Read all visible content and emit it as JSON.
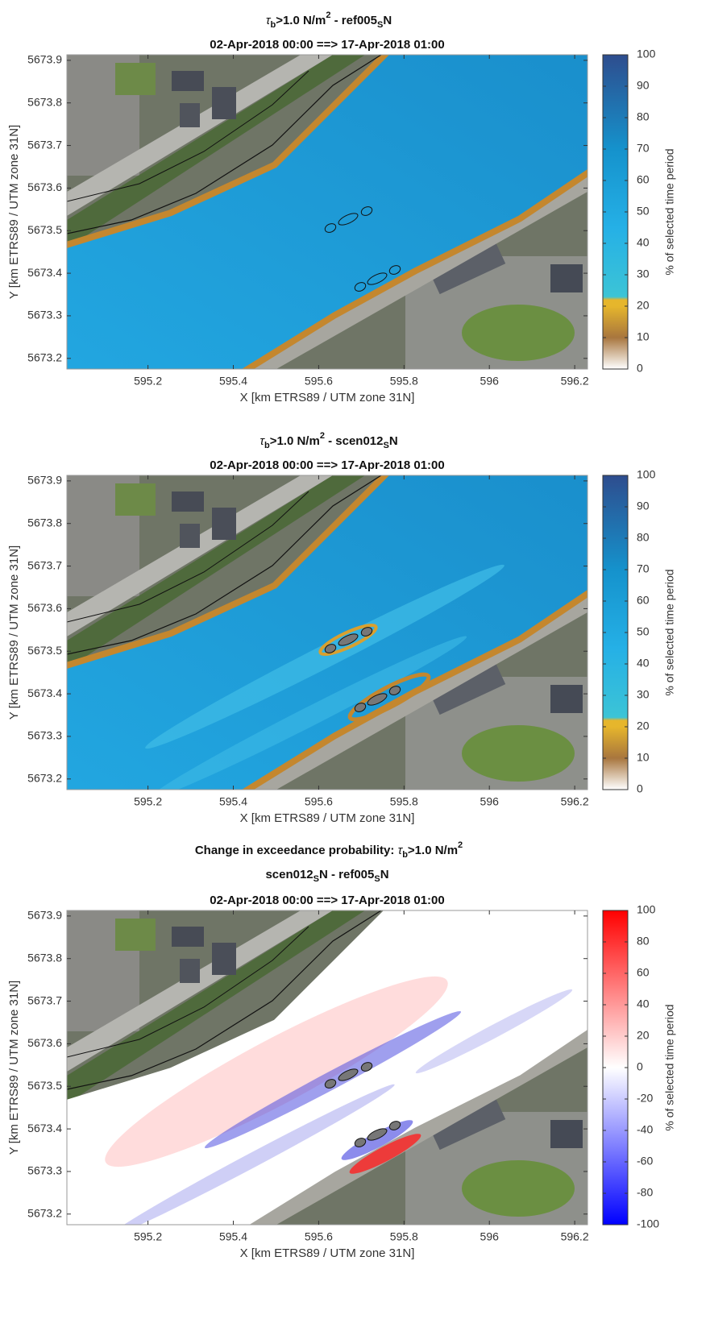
{
  "chart_data": [
    {
      "type": "contour",
      "title_parts": [
        "τ",
        "b",
        ">1.0 N/m",
        "2",
        " - ref005",
        "S",
        "N"
      ],
      "subtitle": "02-Apr-2018 00:00 ==> 17-Apr-2018 01:00",
      "xlabel": "X [km ETRS89 / UTM zone 31N]",
      "ylabel": "Y [km ETRS89 / UTM zone 31N]",
      "xlim": [
        595.01,
        596.23
      ],
      "xticks": [
        595.2,
        595.4,
        595.6,
        595.8,
        596,
        596.2
      ],
      "ylim": [
        5673.175,
        5673.913
      ],
      "yticks": [
        5673.2,
        5673.3,
        5673.4,
        5673.5,
        5673.6,
        5673.7,
        5673.8,
        5673.9
      ],
      "colorbar": {
        "label": "% of selected time period",
        "lim": [
          0,
          100
        ],
        "ticks": [
          0,
          10,
          20,
          30,
          40,
          50,
          60,
          70,
          80,
          90,
          100
        ]
      }
    },
    {
      "type": "contour",
      "title_parts": [
        "τ",
        "b",
        ">1.0 N/m",
        "2",
        " - scen012",
        "S",
        "N"
      ],
      "subtitle": "02-Apr-2018 00:00 ==> 17-Apr-2018 01:00",
      "xlabel": "X [km ETRS89 / UTM zone 31N]",
      "ylabel": "Y [km ETRS89 / UTM zone 31N]",
      "xlim": [
        595.01,
        596.23
      ],
      "xticks": [
        595.2,
        595.4,
        595.6,
        595.8,
        596,
        596.2
      ],
      "ylim": [
        5673.175,
        5673.913
      ],
      "yticks": [
        5673.2,
        5673.3,
        5673.4,
        5673.5,
        5673.6,
        5673.7,
        5673.8,
        5673.9
      ],
      "colorbar": {
        "label": "% of selected time period",
        "lim": [
          0,
          100
        ],
        "ticks": [
          0,
          10,
          20,
          30,
          40,
          50,
          60,
          70,
          80,
          90,
          100
        ]
      }
    },
    {
      "type": "contour",
      "title_parts": [
        "Change in exceedance probability: ",
        "τ",
        "b",
        ">1.0 N/m",
        "2"
      ],
      "title2_parts": [
        "scen012",
        "S",
        "N - ref005",
        "S",
        "N"
      ],
      "subtitle": "02-Apr-2018 00:00 ==> 17-Apr-2018 01:00",
      "xlabel": "X [km ETRS89 / UTM zone 31N]",
      "ylabel": "Y [km ETRS89 / UTM zone 31N]",
      "xlim": [
        595.01,
        596.23
      ],
      "xticks": [
        595.2,
        595.4,
        595.6,
        595.8,
        596,
        596.2
      ],
      "ylim": [
        5673.175,
        5673.913
      ],
      "yticks": [
        5673.2,
        5673.3,
        5673.4,
        5673.5,
        5673.6,
        5673.7,
        5673.8,
        5673.9
      ],
      "colorbar": {
        "label": "% of selected time period",
        "lim": [
          -100,
          100
        ],
        "ticks": [
          -100,
          -80,
          -60,
          -40,
          -20,
          0,
          20,
          40,
          60,
          80,
          100
        ]
      }
    }
  ]
}
